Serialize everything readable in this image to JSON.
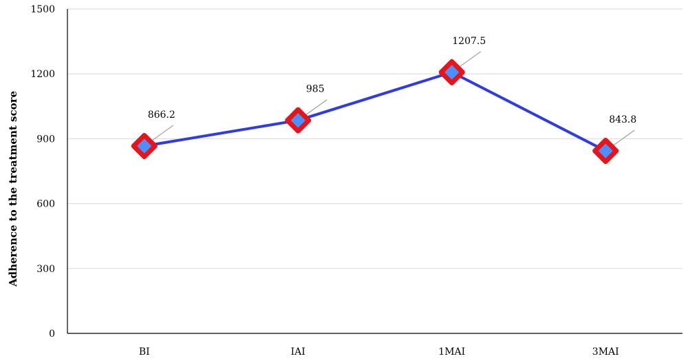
{
  "chart_data": {
    "type": "line",
    "categories": [
      "BI",
      "IAI",
      "1MAI",
      "3MAI"
    ],
    "series": [
      {
        "values": [
          866.2,
          985,
          1207.5,
          843.8
        ]
      }
    ],
    "data_labels": [
      "866.2",
      "985",
      "1207.5",
      "843.8"
    ],
    "ylabel": "Adherence to the treatment score",
    "xlabel": "",
    "title": "",
    "ylim": [
      0,
      1500
    ],
    "yticks": [
      0,
      300,
      600,
      900,
      1200,
      1500
    ],
    "grid": "horizontal",
    "line_color": "#2f3be6",
    "marker_fill": "#4a90ff",
    "marker_outline": "#e8141b",
    "grid_color": "#d9d9d9",
    "axis_color": "#000000",
    "leader_color": "#a6a6a6"
  }
}
